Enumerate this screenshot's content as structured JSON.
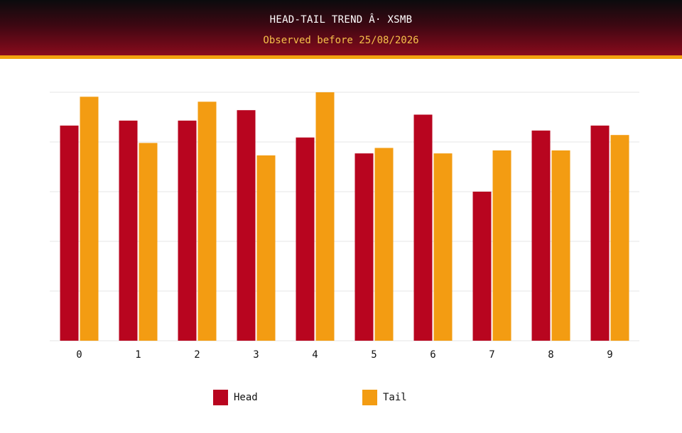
{
  "header": {
    "title": "HEAD-TAIL TREND Â· XSMB",
    "subtitle": "Observed before 25/08/2026"
  },
  "colors": {
    "head": "#b8051f",
    "tail": "#f39c12",
    "grid": "#e6e6e6",
    "axis_text": "#111111"
  },
  "legend": {
    "head_label": "Head",
    "tail_label": "Tail"
  },
  "chart_data": {
    "type": "bar",
    "title": "HEAD-TAIL TREND Â· XSMB",
    "subtitle": "Observed before 25/08/2026",
    "categories": [
      "0",
      "1",
      "2",
      "3",
      "4",
      "5",
      "6",
      "7",
      "8",
      "9"
    ],
    "series": [
      {
        "name": "Head",
        "values": [
          43.3,
          44.3,
          44.3,
          46.4,
          40.9,
          37.7,
          45.5,
          30.0,
          42.3,
          43.3
        ]
      },
      {
        "name": "Tail",
        "values": [
          49.1,
          39.8,
          48.1,
          37.3,
          50.0,
          38.8,
          37.7,
          38.3,
          38.3,
          41.4
        ]
      }
    ],
    "ylim": [
      0,
      50
    ],
    "y_tick_labels_shown": false,
    "grid": true,
    "legend_position": "bottom"
  }
}
